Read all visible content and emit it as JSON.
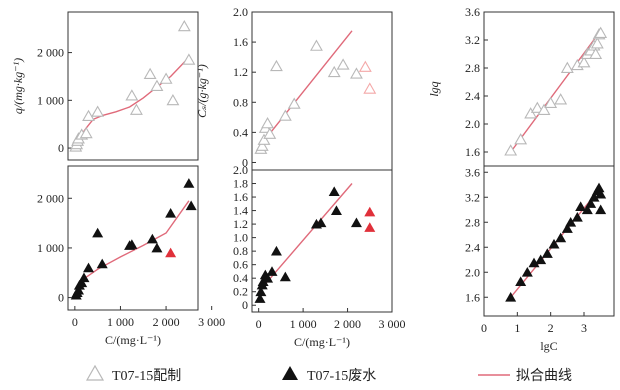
{
  "legend": {
    "open_label": "T07-15配制",
    "filled_label": "T07-15废水",
    "fit_label": "拟合曲线"
  },
  "colors": {
    "open_marker": "#b8b8b8",
    "filled_marker": "#111111",
    "outlier_marker": "#e0303a",
    "light_outlier_marker": "#f4a8a8",
    "fit_line": "#e06a7a",
    "axis": "#333333"
  },
  "chart_data": [
    {
      "type": "scatter",
      "id": "q-c-prepared",
      "ylabel": "q/(mg·kg⁻¹)",
      "xlabel": "",
      "xlim": [
        -150,
        2700
      ],
      "ylim": [
        -250,
        2850
      ],
      "yticks": [
        0,
        1000,
        2000
      ],
      "ytick_labels": [
        "0",
        "1 000",
        "2 000"
      ],
      "xticks": [],
      "xtick_labels": [],
      "points": [
        [
          20,
          30
        ],
        [
          40,
          80
        ],
        [
          60,
          150
        ],
        [
          80,
          200
        ],
        [
          150,
          280
        ],
        [
          250,
          310
        ],
        [
          300,
          670
        ],
        [
          500,
          760
        ],
        [
          1250,
          1100
        ],
        [
          1350,
          800
        ],
        [
          1650,
          1550
        ],
        [
          1800,
          1300
        ],
        [
          2000,
          1450
        ],
        [
          2150,
          1000
        ],
        [
          2400,
          2550
        ],
        [
          2500,
          1850
        ]
      ],
      "marker": "triangle-open",
      "fit_line": [
        [
          0,
          0
        ],
        [
          100,
          220
        ],
        [
          250,
          420
        ],
        [
          400,
          600
        ],
        [
          600,
          680
        ],
        [
          900,
          760
        ],
        [
          1200,
          860
        ],
        [
          1500,
          1050
        ],
        [
          1800,
          1280
        ],
        [
          2100,
          1500
        ],
        [
          2500,
          1900
        ]
      ]
    },
    {
      "type": "scatter",
      "id": "cs-c-prepared",
      "ylabel": "Cₛ/(g·kg⁻¹)",
      "xlabel": "",
      "xlim": [
        -150,
        3000
      ],
      "ylim": [
        -0.1,
        2.0
      ],
      "yticks": [
        0,
        0.4,
        0.8,
        1.2,
        1.6,
        2.0
      ],
      "ytick_labels": [
        "0",
        "0.4",
        "0.8",
        "1.2",
        "1.6",
        "2.0"
      ],
      "xticks": [],
      "xtick_labels": [],
      "points": [
        [
          50,
          0.18
        ],
        [
          80,
          0.22
        ],
        [
          120,
          0.3
        ],
        [
          150,
          0.46
        ],
        [
          200,
          0.52
        ],
        [
          250,
          0.38
        ],
        [
          400,
          1.28
        ],
        [
          600,
          0.62
        ],
        [
          800,
          0.78
        ],
        [
          1300,
          1.55
        ],
        [
          1700,
          1.2
        ],
        [
          1900,
          1.3
        ],
        [
          2200,
          1.18
        ],
        [
          2400,
          1.27
        ],
        [
          2500,
          0.98
        ]
      ],
      "marker": "triangle-open",
      "light_red_points": [
        [
          2400,
          1.27
        ],
        [
          2500,
          0.98
        ]
      ],
      "fit_line": [
        [
          0,
          0.2
        ],
        [
          2100,
          1.75
        ]
      ]
    },
    {
      "type": "scatter",
      "id": "lgq-lgc-prepared",
      "ylabel": "lgq",
      "xlabel": "",
      "xlim": [
        0,
        3.9
      ],
      "ylim": [
        1.4,
        3.6
      ],
      "yticks": [
        1.6,
        2.0,
        2.4,
        2.8,
        3.2,
        3.6
      ],
      "ytick_labels": [
        "1.6",
        "2.0",
        "2.4",
        "2.8",
        "3.2",
        "3.6"
      ],
      "xticks": [],
      "xtick_labels": [],
      "points": [
        [
          0.8,
          1.62
        ],
        [
          1.1,
          1.78
        ],
        [
          1.4,
          2.15
        ],
        [
          1.6,
          2.23
        ],
        [
          1.8,
          2.2
        ],
        [
          2.0,
          2.3
        ],
        [
          2.3,
          2.35
        ],
        [
          2.5,
          2.8
        ],
        [
          2.8,
          2.84
        ],
        [
          3.0,
          2.88
        ],
        [
          3.1,
          3.0
        ],
        [
          3.2,
          3.05
        ],
        [
          3.3,
          3.12
        ],
        [
          3.35,
          3.0
        ],
        [
          3.4,
          3.15
        ],
        [
          3.45,
          3.28
        ],
        [
          3.5,
          3.3
        ]
      ],
      "marker": "triangle-open",
      "fit_line": [
        [
          0.8,
          1.6
        ],
        [
          3.45,
          3.3
        ]
      ]
    },
    {
      "type": "scatter",
      "id": "q-c-wastewater",
      "ylabel": "",
      "xlabel": "C/(mg·L⁻¹)",
      "xlim": [
        -150,
        2700
      ],
      "ylim": [
        -250,
        2650
      ],
      "yticks": [
        0,
        1000,
        2000
      ],
      "ytick_labels": [
        "0",
        "1 000",
        "2 000"
      ],
      "xticks": [
        0,
        1000,
        2000,
        3000
      ],
      "xtick_labels": [
        "0",
        "1 000",
        "2 000",
        "3 000"
      ],
      "points": [
        [
          30,
          50
        ],
        [
          50,
          100
        ],
        [
          80,
          150
        ],
        [
          100,
          250
        ],
        [
          150,
          300
        ],
        [
          200,
          400
        ],
        [
          300,
          600
        ],
        [
          500,
          1300
        ],
        [
          600,
          680
        ],
        [
          1200,
          1050
        ],
        [
          1250,
          1070
        ],
        [
          1700,
          1180
        ],
        [
          1800,
          1000
        ],
        [
          2100,
          1700
        ],
        [
          2500,
          2300
        ],
        [
          2550,
          1850
        ]
      ],
      "red_points": [
        [
          2100,
          900
        ]
      ],
      "marker": "triangle-filled",
      "fit_line": [
        [
          0,
          0
        ],
        [
          200,
          380
        ],
        [
          500,
          570
        ],
        [
          1000,
          820
        ],
        [
          1500,
          1050
        ],
        [
          2000,
          1300
        ],
        [
          2500,
          1950
        ]
      ]
    },
    {
      "type": "scatter",
      "id": "cs-c-wastewater",
      "ylabel": "",
      "xlabel": "C/(mg·L⁻¹)",
      "xlim": [
        -150,
        3000
      ],
      "ylim": [
        -0.1,
        2.0
      ],
      "yticks": [
        0,
        0.2,
        0.4,
        0.6,
        0.8,
        1.0,
        1.2,
        1.4,
        1.6,
        1.8,
        2.0
      ],
      "ytick_labels": [
        "0",
        "0.2",
        "0.4",
        "0.6",
        "0.8",
        "1.0",
        "1.2",
        "1.4",
        "1.6",
        "1.8",
        "2.0"
      ],
      "xticks": [
        0,
        1000,
        2000,
        3000
      ],
      "xtick_labels": [
        "0",
        "1 000",
        "2 000",
        "3 000"
      ],
      "points": [
        [
          30,
          0.1
        ],
        [
          50,
          0.2
        ],
        [
          80,
          0.3
        ],
        [
          100,
          0.35
        ],
        [
          150,
          0.45
        ],
        [
          200,
          0.4
        ],
        [
          300,
          0.5
        ],
        [
          400,
          0.8
        ],
        [
          600,
          0.42
        ],
        [
          1300,
          1.2
        ],
        [
          1400,
          1.22
        ],
        [
          1700,
          1.68
        ],
        [
          1750,
          1.4
        ],
        [
          2200,
          1.22
        ]
      ],
      "red_points": [
        [
          2500,
          1.38
        ],
        [
          2500,
          1.15
        ]
      ],
      "marker": "triangle-filled",
      "fit_line": [
        [
          0,
          0.2
        ],
        [
          2100,
          1.8
        ]
      ]
    },
    {
      "type": "scatter",
      "id": "lgq-lgc-wastewater",
      "ylabel": "",
      "xlabel": "lgC",
      "xlim": [
        0,
        3.9
      ],
      "ylim": [
        1.3,
        3.7
      ],
      "yticks": [
        1.6,
        2.0,
        2.4,
        2.8,
        3.2,
        3.6
      ],
      "ytick_labels": [
        "1.6",
        "2.0",
        "2.4",
        "2.8",
        "3.2",
        "3.6"
      ],
      "xticks": [
        0,
        1,
        2,
        3
      ],
      "xtick_labels": [
        "0",
        "1",
        "2",
        "3"
      ],
      "points": [
        [
          0.8,
          1.6
        ],
        [
          1.1,
          1.85
        ],
        [
          1.3,
          2.0
        ],
        [
          1.5,
          2.15
        ],
        [
          1.7,
          2.2
        ],
        [
          1.9,
          2.3
        ],
        [
          2.1,
          2.45
        ],
        [
          2.3,
          2.55
        ],
        [
          2.5,
          2.7
        ],
        [
          2.6,
          2.8
        ],
        [
          2.8,
          2.88
        ],
        [
          2.9,
          3.05
        ],
        [
          3.1,
          3.0
        ],
        [
          3.2,
          3.1
        ],
        [
          3.3,
          3.2
        ],
        [
          3.4,
          3.3
        ],
        [
          3.45,
          3.35
        ],
        [
          3.5,
          3.25
        ],
        [
          3.5,
          3.0
        ]
      ],
      "marker": "triangle-filled",
      "fit_line": [
        [
          0.8,
          1.6
        ],
        [
          3.5,
          3.35
        ]
      ]
    }
  ]
}
